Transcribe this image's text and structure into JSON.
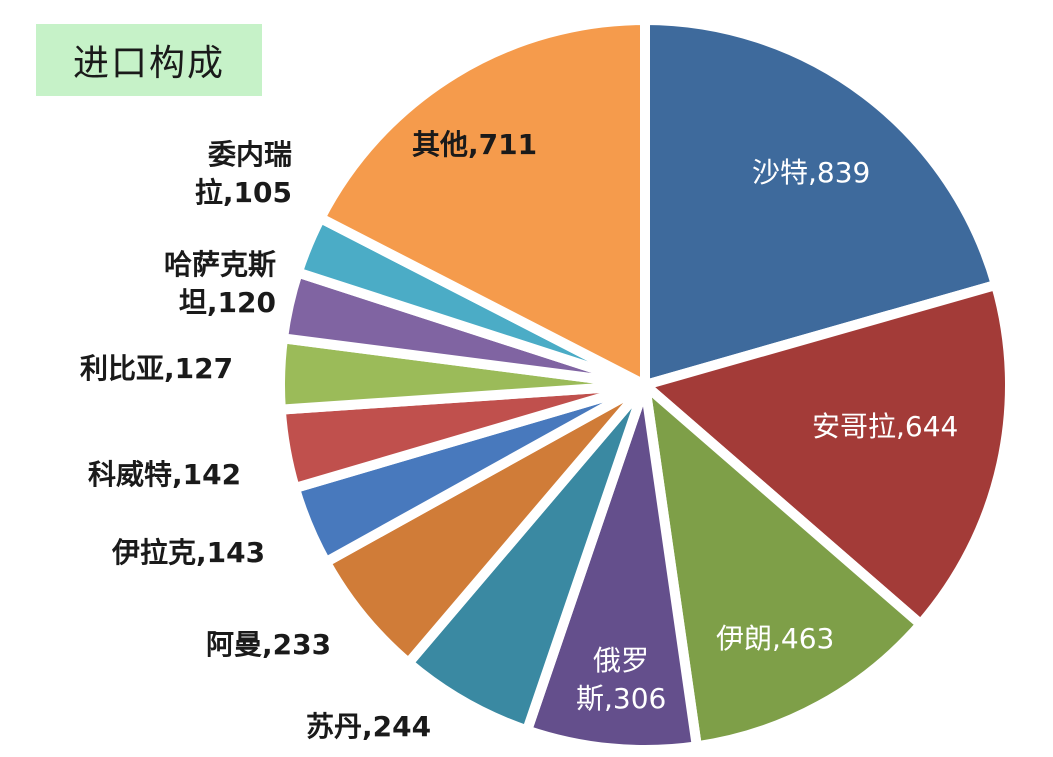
{
  "title": "进口构成",
  "chart_data": {
    "type": "pie",
    "title": "进口构成",
    "start_angle_deg": 0,
    "direction": "clockwise",
    "center": [
      645,
      385
    ],
    "radius": 365,
    "categories": [
      "沙特",
      "安哥拉",
      "伊朗",
      "俄罗斯",
      "苏丹",
      "阿曼",
      "伊拉克",
      "科威特",
      "利比亚",
      "哈萨克斯坦",
      "委内瑞拉",
      "其他"
    ],
    "values": [
      839,
      644,
      463,
      306,
      244,
      233,
      143,
      142,
      127,
      120,
      105,
      711
    ],
    "colors": [
      "#3e6a9c",
      "#a33b38",
      "#7e9f48",
      "#644f8c",
      "#3a89a2",
      "#d07c38",
      "#4879bd",
      "#c0504d",
      "#9bbb59",
      "#8064a2",
      "#4bacc6",
      "#f59b4c"
    ],
    "total": 4077,
    "data_labels": [
      {
        "name": "沙特",
        "value": "839",
        "text": "沙特,839"
      },
      {
        "name": "安哥拉",
        "value": "644",
        "text": "安哥拉,644"
      },
      {
        "name": "伊朗",
        "value": "463",
        "text": "伊朗,463"
      },
      {
        "name": "俄罗斯",
        "value": "306",
        "line1": "俄罗",
        "line2": "斯,306"
      },
      {
        "name": "苏丹",
        "value": "244",
        "text": "苏丹,244"
      },
      {
        "name": "阿曼",
        "value": "233",
        "text": "阿曼,233"
      },
      {
        "name": "伊拉克",
        "value": "143",
        "text": "伊拉克,143"
      },
      {
        "name": "科威特",
        "value": "142",
        "text": "科威特,142"
      },
      {
        "name": "利比亚",
        "value": "127",
        "text": "利比亚,127"
      },
      {
        "name": "哈萨克斯坦",
        "value": "120",
        "line1": "哈萨克斯",
        "line2": "坦,120"
      },
      {
        "name": "委内瑞拉",
        "value": "105",
        "line1": "委内瑞",
        "line2": "拉,105"
      },
      {
        "name": "其他",
        "value": "711",
        "text": "其他,711"
      }
    ],
    "legend": null,
    "grid": false
  }
}
